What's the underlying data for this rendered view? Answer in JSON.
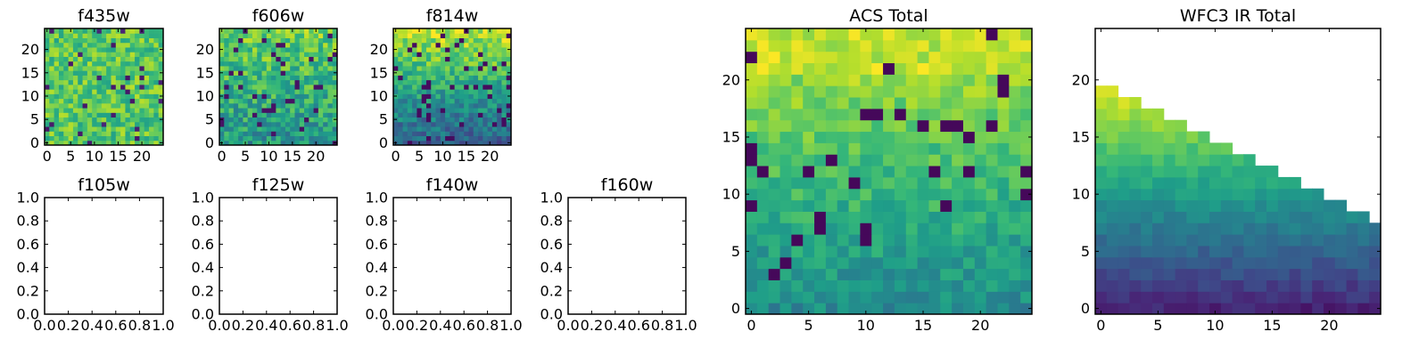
{
  "chart_data": [
    {
      "type": "heatmap",
      "title": "f435w",
      "xlim": [
        -0.5,
        24.5
      ],
      "ylim": [
        -0.5,
        24.5
      ],
      "xticks": [
        0,
        5,
        10,
        15,
        20
      ],
      "yticks": [
        0,
        5,
        10,
        15,
        20
      ],
      "grid": false,
      "colormap": "viridis",
      "values_note": "random-like pixel map, mid-high intensity"
    },
    {
      "type": "heatmap",
      "title": "f606w",
      "xlim": [
        -0.5,
        24.5
      ],
      "ylim": [
        -0.5,
        24.5
      ],
      "xticks": [
        0,
        5,
        10,
        15,
        20
      ],
      "yticks": [
        0,
        5,
        10,
        15,
        20
      ],
      "grid": false,
      "colormap": "viridis"
    },
    {
      "type": "heatmap",
      "title": "f814w",
      "xlim": [
        -0.5,
        24.5
      ],
      "ylim": [
        -0.5,
        24.5
      ],
      "xticks": [
        0,
        5,
        10,
        15,
        20
      ],
      "yticks": [
        0,
        5,
        10,
        15,
        20
      ],
      "grid": false,
      "colormap": "viridis"
    },
    {
      "type": "empty",
      "title": "f105w",
      "xlim": [
        0,
        1
      ],
      "ylim": [
        0,
        1
      ],
      "xticks": [
        "0.0",
        "0.2",
        "0.4",
        "0.6",
        "0.8",
        "1.0"
      ],
      "yticks": [
        "0.0",
        "0.2",
        "0.4",
        "0.6",
        "0.8",
        "1.0"
      ]
    },
    {
      "type": "empty",
      "title": "f125w",
      "xlim": [
        0,
        1
      ],
      "ylim": [
        0,
        1
      ],
      "xticks": [
        "0.0",
        "0.2",
        "0.4",
        "0.6",
        "0.8",
        "1.0"
      ],
      "yticks": [
        "0.0",
        "0.2",
        "0.4",
        "0.6",
        "0.8",
        "1.0"
      ]
    },
    {
      "type": "empty",
      "title": "f140w",
      "xlim": [
        0,
        1
      ],
      "ylim": [
        0,
        1
      ],
      "xticks": [
        "0.0",
        "0.2",
        "0.4",
        "0.6",
        "0.8",
        "1.0"
      ],
      "yticks": [
        "0.0",
        "0.2",
        "0.4",
        "0.6",
        "0.8",
        "1.0"
      ]
    },
    {
      "type": "empty",
      "title": "f160w",
      "xlim": [
        0,
        1
      ],
      "ylim": [
        0,
        1
      ],
      "xticks": [
        "0.0",
        "0.2",
        "0.4",
        "0.6",
        "0.8",
        "1.0"
      ],
      "yticks": [
        "0.0",
        "0.2",
        "0.4",
        "0.6",
        "0.8",
        "1.0"
      ]
    },
    {
      "type": "heatmap",
      "title": "ACS Total",
      "xlim": [
        -0.5,
        24.5
      ],
      "ylim": [
        -0.5,
        24.5
      ],
      "xticks": [
        0,
        5,
        10,
        15,
        20
      ],
      "yticks": [
        0,
        5,
        10,
        15,
        20
      ],
      "grid": false,
      "colormap": "viridis"
    },
    {
      "type": "heatmap",
      "title": "WFC3 IR Total",
      "xlim": [
        -0.5,
        24.5
      ],
      "ylim": [
        -0.5,
        24.5
      ],
      "xticks": [
        0,
        5,
        10,
        15,
        20
      ],
      "yticks": [
        0,
        5,
        10,
        15,
        20
      ],
      "grid": false,
      "colormap": "viridis",
      "masked_region": "upper-right triangle is blank (NaN)"
    }
  ],
  "colors": {
    "viridis_low": "#440154",
    "viridis_mid_low": "#31688e",
    "viridis_mid": "#21918c",
    "viridis_mid_high": "#35b779",
    "viridis_high": "#90d743",
    "viridis_max": "#fde725"
  }
}
